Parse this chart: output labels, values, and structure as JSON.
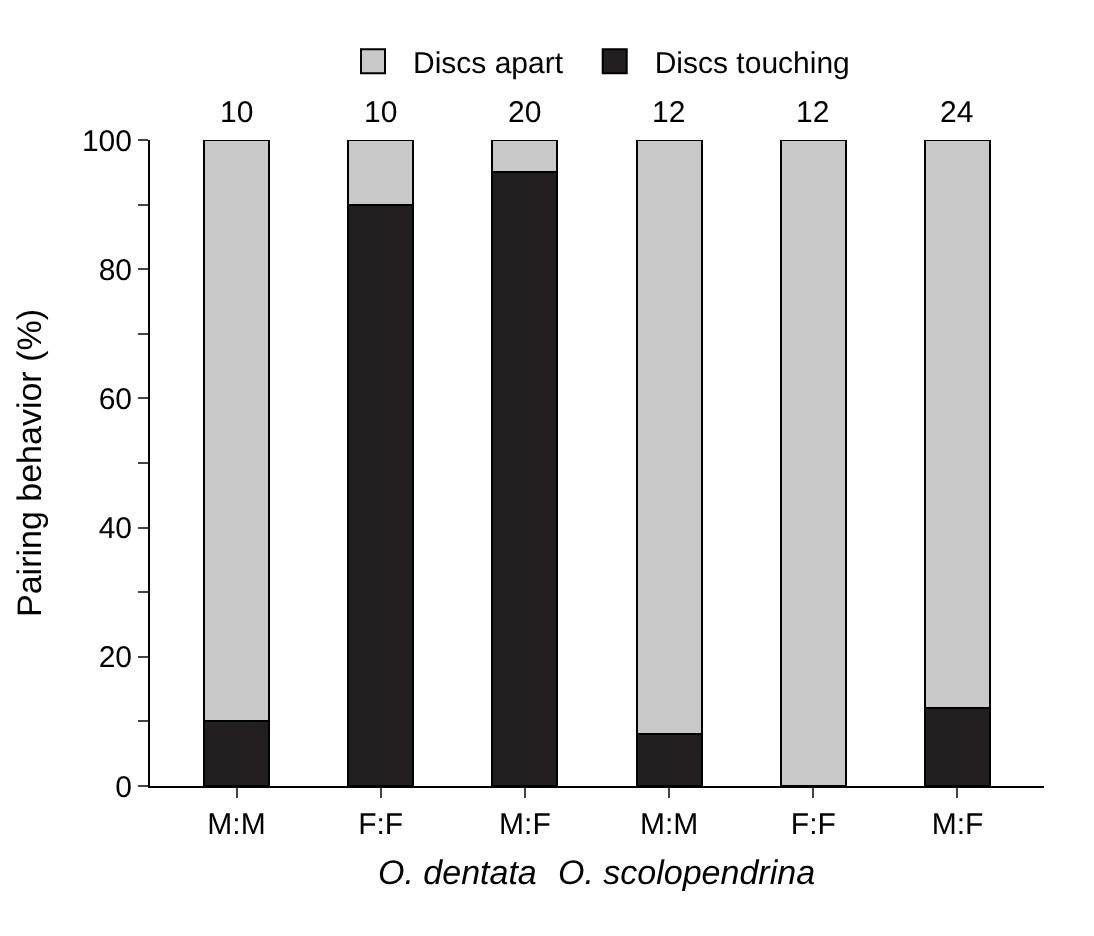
{
  "chart_data": {
    "type": "bar",
    "stacked": true,
    "ylabel": "Pairing behavior (%)",
    "categories": [
      "M:M",
      "F:F",
      "M:F",
      "M:M",
      "F:F",
      "M:F"
    ],
    "series": [
      {
        "name": "Discs touching",
        "color": "#231f20",
        "values": [
          10,
          90,
          95,
          8,
          0,
          12
        ]
      },
      {
        "name": "Discs apart",
        "color": "#c8c8c8",
        "values": [
          90,
          10,
          5,
          92,
          100,
          88
        ]
      }
    ],
    "ylim": [
      0,
      100
    ],
    "yticks": [
      0,
      {
        "value": 10,
        "label": null
      },
      20,
      {
        "value": 30,
        "label": null
      },
      40,
      {
        "value": 50,
        "label": null
      },
      60,
      {
        "value": 70,
        "label": null
      },
      80,
      {
        "value": 90,
        "label": null
      },
      100
    ],
    "annotations": [
      "10",
      "10",
      "20",
      "12",
      "12",
      "24",
      "O. dentata",
      "O. scolopendrina"
    ],
    "legend": "top"
  }
}
